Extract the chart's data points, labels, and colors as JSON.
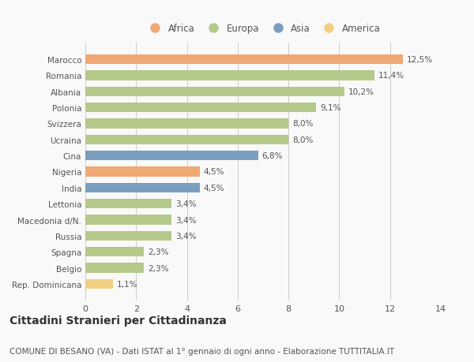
{
  "categories": [
    "Marocco",
    "Romania",
    "Albania",
    "Polonia",
    "Svizzera",
    "Ucraina",
    "Cina",
    "Nigeria",
    "India",
    "Lettonia",
    "Macedonia d/N.",
    "Russia",
    "Spagna",
    "Belgio",
    "Rep. Dominicana"
  ],
  "values": [
    12.5,
    11.4,
    10.2,
    9.1,
    8.0,
    8.0,
    6.8,
    4.5,
    4.5,
    3.4,
    3.4,
    3.4,
    2.3,
    2.3,
    1.1
  ],
  "labels": [
    "12,5%",
    "11,4%",
    "10,2%",
    "9,1%",
    "8,0%",
    "8,0%",
    "6,8%",
    "4,5%",
    "4,5%",
    "3,4%",
    "3,4%",
    "3,4%",
    "2,3%",
    "2,3%",
    "1,1%"
  ],
  "continents": [
    "Africa",
    "Europa",
    "Europa",
    "Europa",
    "Europa",
    "Europa",
    "Asia",
    "Africa",
    "Asia",
    "Europa",
    "Europa",
    "Europa",
    "Europa",
    "Europa",
    "America"
  ],
  "colors": {
    "Africa": "#F0A875",
    "Europa": "#B5C98A",
    "Asia": "#7B9DC0",
    "America": "#F0D080"
  },
  "legend_order": [
    "Africa",
    "Europa",
    "Asia",
    "America"
  ],
  "xlim": [
    0,
    14
  ],
  "xticks": [
    0,
    2,
    4,
    6,
    8,
    10,
    12,
    14
  ],
  "background_color": "#f9f9f9",
  "title": "Cittadini Stranieri per Cittadinanza",
  "subtitle": "COMUNE DI BESANO (VA) - Dati ISTAT al 1° gennaio di ogni anno - Elaborazione TUTTITALIA.IT",
  "title_fontsize": 10,
  "subtitle_fontsize": 7.5,
  "bar_height": 0.6,
  "grid_color": "#cccccc",
  "label_fontsize": 7.5,
  "ytick_fontsize": 7.5,
  "xtick_fontsize": 8,
  "legend_fontsize": 8.5
}
